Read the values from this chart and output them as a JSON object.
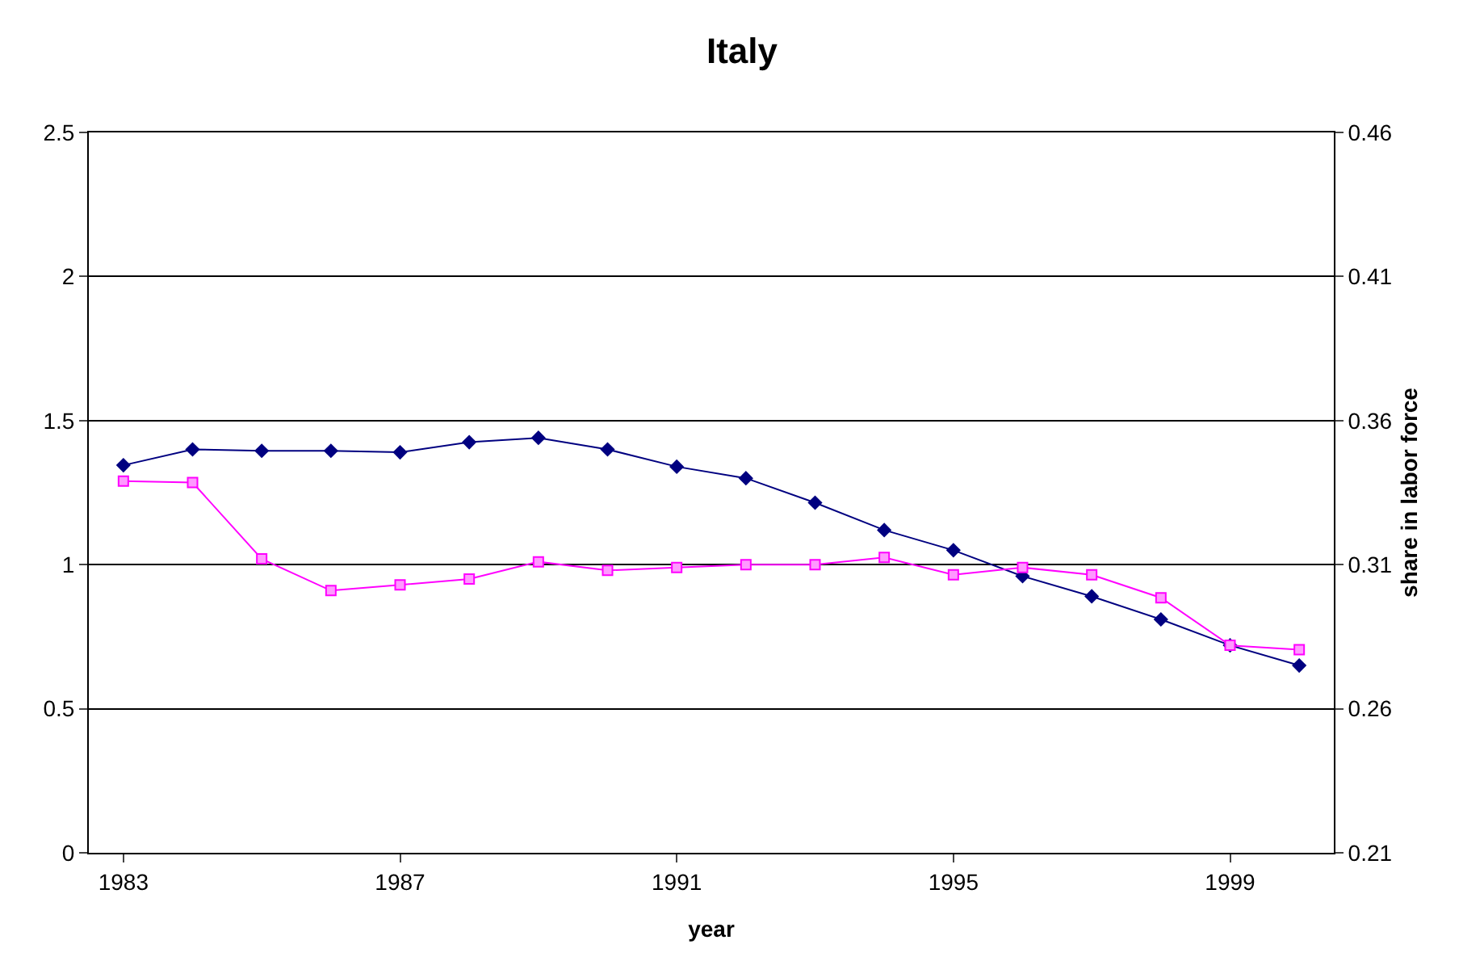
{
  "chart_data": {
    "type": "line",
    "title": "Italy",
    "xlabel": "year",
    "y2label": "share in labor force",
    "x": [
      1983,
      1984,
      1985,
      1986,
      1987,
      1988,
      1989,
      1990,
      1991,
      1992,
      1993,
      1994,
      1995,
      1996,
      1997,
      1998,
      1999,
      2000
    ],
    "xlim": [
      1982.5,
      2000.5
    ],
    "xticks": [
      1983,
      1987,
      1991,
      1995,
      1999
    ],
    "ylim": [
      0,
      2.5
    ],
    "yticks": [
      0,
      0.5,
      1,
      1.5,
      2,
      2.5
    ],
    "y2lim": [
      0.21,
      0.46
    ],
    "y2ticks": [
      0.21,
      0.26,
      0.31,
      0.36,
      0.41,
      0.46
    ],
    "grid": "y",
    "series": [
      {
        "color": "#000080",
        "marker": "diamond",
        "values": [
          1.345,
          1.4,
          1.395,
          1.395,
          1.39,
          1.425,
          1.44,
          1.4,
          1.34,
          1.3,
          1.215,
          1.12,
          1.05,
          0.96,
          0.89,
          0.81,
          0.72,
          0.65
        ]
      },
      {
        "color": "#ff00ff",
        "marker": "square",
        "axis": "y2",
        "values": [
          0.339,
          0.3385,
          0.312,
          0.301,
          0.303,
          0.305,
          0.311,
          0.308,
          0.309,
          0.31,
          0.31,
          0.3125,
          0.3065,
          0.309,
          0.3065,
          0.2985,
          0.282,
          0.2805
        ]
      }
    ]
  }
}
